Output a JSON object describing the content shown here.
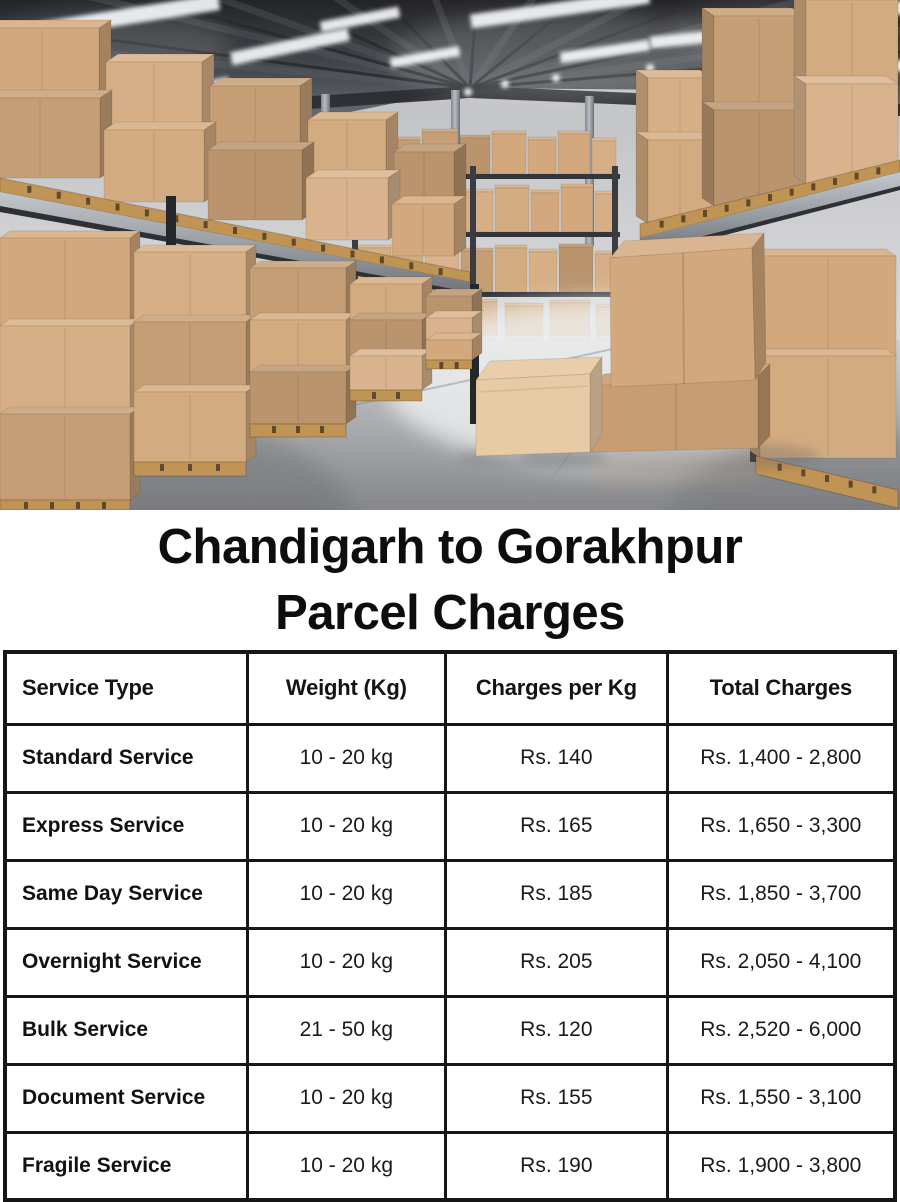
{
  "title": {
    "line1": "Chandigarh to Gorakhpur",
    "line2": "Parcel Charges"
  },
  "hero": {
    "alt": "Warehouse aisle with tall metal racks and stacks of cardboard boxes on pallets",
    "colors": {
      "cardboard": "#d2a87c",
      "cardboard_light": "#e6cba4",
      "cardboard_dark": "#b08759",
      "ceiling_dark": "#232427",
      "ceiling_light": "#85898f",
      "wall_top": "#b9babd",
      "wall_bottom": "#dadbdd",
      "floor_light": "#eef0f1",
      "floor_dark": "#85878b",
      "steel": "#aab0b6",
      "rack_dark": "#26272b",
      "wood": "#c09455",
      "light_white": "#f4f6f8"
    }
  },
  "table": {
    "headers": [
      "Service Type",
      "Weight (Kg)",
      "Charges per Kg",
      "Total Charges"
    ],
    "rows": [
      {
        "service": "Standard Service",
        "weight": "10 - 20 kg",
        "per_kg": "Rs. 140",
        "total": "Rs. 1,400 - 2,800"
      },
      {
        "service": "Express Service",
        "weight": "10 - 20 kg",
        "per_kg": "Rs. 165",
        "total": "Rs. 1,650 - 3,300"
      },
      {
        "service": "Same Day Service",
        "weight": "10 - 20 kg",
        "per_kg": "Rs. 185",
        "total": "Rs. 1,850 - 3,700"
      },
      {
        "service": "Overnight Service",
        "weight": "10 - 20 kg",
        "per_kg": "Rs. 205",
        "total": "Rs. 2,050 - 4,100"
      },
      {
        "service": "Bulk Service",
        "weight": "21 - 50 kg",
        "per_kg": "Rs. 120",
        "total": "Rs. 2,520 - 6,000"
      },
      {
        "service": "Document Service",
        "weight": "10 - 20 kg",
        "per_kg": "Rs. 155",
        "total": "Rs. 1,550 - 3,100"
      },
      {
        "service": "Fragile Service",
        "weight": "10 - 20 kg",
        "per_kg": "Rs. 190",
        "total": "Rs. 1,900 - 3,800"
      }
    ]
  }
}
